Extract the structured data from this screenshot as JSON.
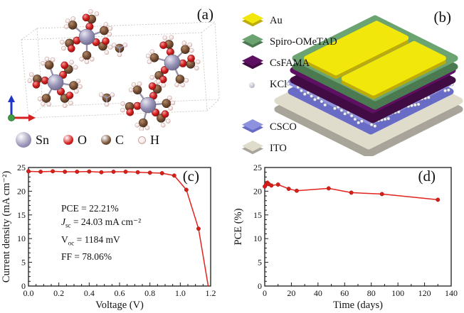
{
  "figure": {
    "background": "#ffffff"
  },
  "panels": {
    "a": {
      "label": "(a)",
      "legend": [
        {
          "name": "Sn",
          "color": "#9a96b8",
          "shade": "#6f6b90"
        },
        {
          "name": "O",
          "color": "#d42020",
          "shade": "#8f1010"
        },
        {
          "name": "C",
          "color": "#7a5137",
          "shade": "#4b2f1d"
        },
        {
          "name": "H",
          "color": "#f6eae8",
          "shade": "#d9b8b4"
        }
      ],
      "axis_arrows": {
        "up_color": "#1f35c4",
        "right_color": "#d42020",
        "origin_color": "#3f9d44"
      }
    },
    "b": {
      "label": "(b)",
      "layers": [
        {
          "name": "Au",
          "color": "#f2e70a",
          "side": "#bcab08"
        },
        {
          "name": "Spiro-OMeTAD",
          "color": "#6ca471",
          "side": "#4b7a50"
        },
        {
          "name": "CsFAMA",
          "color": "#5d1061",
          "side": "#410b44"
        },
        {
          "name": "KCl",
          "color": "#c2c2cc",
          "side": "#8e8e9e"
        },
        {
          "name": "CSCO",
          "color": "#8e92de",
          "side": "#686cc6"
        },
        {
          "name": "ITO",
          "color": "#e0dccb",
          "side": "#a8a499"
        }
      ]
    },
    "c": {
      "label": "(c)",
      "annotation": {
        "line1": "PCE = 22.21%",
        "line2_var": "J",
        "line2_sub": "sc",
        "line2_rest": " = 24.03 mA cm⁻²",
        "line3_var": "V",
        "line3_sub": "oc",
        "line3_rest": " = 1184 mV",
        "line4": "FF = 78.06%"
      }
    },
    "d": {
      "label": "(d)"
    }
  },
  "chart_data": [
    {
      "id": "jv-curve",
      "type": "line",
      "title": "",
      "xlabel": "Voltage (V)",
      "ylabel": "Current density (mA cm⁻²)",
      "xlim": [
        0,
        1.2
      ],
      "ylim": [
        0,
        25
      ],
      "xticks": [
        0,
        0.2,
        0.4,
        0.6,
        0.8,
        1.0,
        1.2
      ],
      "xtick_labels": [
        "0.0",
        "0.2",
        "0.4",
        "0.6",
        "0.8",
        "1.0",
        "1.2"
      ],
      "yticks": [
        0,
        5,
        10,
        15,
        20,
        25
      ],
      "ytick_labels": [
        "0",
        "5",
        "10",
        "15",
        "20",
        "25"
      ],
      "grid": false,
      "legend_position": "none",
      "series": [
        {
          "name": "J-V curve",
          "color": "#e3231c",
          "marker_color": "#d61f18",
          "x": [
            0.0,
            0.08,
            0.16,
            0.24,
            0.32,
            0.4,
            0.48,
            0.56,
            0.64,
            0.72,
            0.8,
            0.88,
            0.96,
            1.04,
            1.12,
            1.184
          ],
          "y": [
            24.2,
            24.1,
            24.2,
            24.1,
            24.1,
            24.15,
            24.0,
            24.1,
            24.1,
            24.0,
            23.9,
            23.8,
            23.3,
            20.3,
            12.1,
            0
          ]
        }
      ]
    },
    {
      "id": "pce-stability",
      "type": "line",
      "title": "",
      "xlabel": "Time (days)",
      "ylabel": "PCE (%)",
      "xlim": [
        0,
        140
      ],
      "ylim": [
        0,
        25
      ],
      "xticks": [
        0,
        20,
        40,
        60,
        80,
        100,
        120,
        140
      ],
      "xtick_labels": [
        "0",
        "20",
        "40",
        "60",
        "80",
        "100",
        "120",
        "140"
      ],
      "yticks": [
        0,
        5,
        10,
        15,
        20,
        25
      ],
      "ytick_labels": [
        "0",
        "5",
        "10",
        "15",
        "20",
        "25"
      ],
      "grid": false,
      "legend_position": "none",
      "series": [
        {
          "name": "PCE stability",
          "color": "#e3231c",
          "marker_color": "#d61f18",
          "x": [
            0,
            1,
            2,
            3,
            5,
            10,
            18,
            24,
            48,
            65,
            88,
            130
          ],
          "y": [
            21.0,
            21.4,
            21.8,
            21.5,
            21.2,
            21.4,
            20.5,
            20.1,
            20.6,
            19.7,
            19.4,
            18.2
          ]
        }
      ]
    }
  ]
}
